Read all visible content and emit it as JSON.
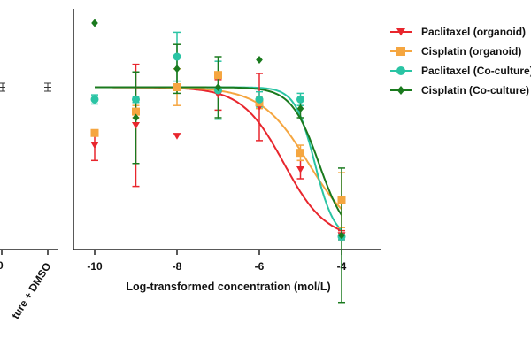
{
  "chart_data": {
    "type": "line",
    "title": "",
    "xlabel": "Log-transformed concentration (mol/L)",
    "ylabel": "",
    "xlim": [
      -10.5,
      -3.1
    ],
    "ylim": [
      0,
      1.2
    ],
    "x_ticks": [
      -10,
      -8,
      -6,
      -4
    ],
    "x_tick_labels": [
      "-10",
      "-8",
      "-6",
      "-4"
    ],
    "left_panel": {
      "labels": [
        "0",
        "ture + DMSO"
      ],
      "control_value": 1.0,
      "control_error": 0.015
    },
    "series": [
      {
        "name": "Paclitaxel (organoid)",
        "color": "#e8262d",
        "marker": "triangle-down",
        "points": [
          {
            "x": -10,
            "y": 0.62,
            "err": 0.1
          },
          {
            "x": -9,
            "y": 0.75,
            "err": 0.4
          },
          {
            "x": -8,
            "y": 0.68,
            "err": 0
          },
          {
            "x": -7,
            "y": 0.95,
            "err": 0.1
          },
          {
            "x": -6,
            "y": 0.87,
            "err": 0.22
          },
          {
            "x": -5,
            "y": 0.46,
            "err": 0.06
          },
          {
            "x": -4,
            "y": 0.03,
            "err": 0.03
          }
        ],
        "fit": {
          "top": 1.0,
          "bottom": 0.0,
          "logIC50": -5.4,
          "hill": 0.85
        }
      },
      {
        "name": "Cisplatin (organoid)",
        "color": "#f5a640",
        "marker": "square",
        "points": [
          {
            "x": -10,
            "y": 0.7,
            "err": 0
          },
          {
            "x": -9,
            "y": 0.84,
            "err": 0.04
          },
          {
            "x": -8,
            "y": 1.0,
            "err": 0.12
          },
          {
            "x": -7,
            "y": 1.08,
            "err": 0
          },
          {
            "x": -6,
            "y": 0.9,
            "err": 0.04
          },
          {
            "x": -5,
            "y": 0.57,
            "err": 0.05
          },
          {
            "x": -4,
            "y": 0.26,
            "err": 0.18
          }
        ],
        "fit": {
          "top": 1.0,
          "bottom": 0.0,
          "logIC50": -4.8,
          "hill": 0.75
        }
      },
      {
        "name": "Paclitaxel (Co-culture)",
        "color": "#2ac4a4",
        "marker": "circle",
        "points": [
          {
            "x": -10,
            "y": 0.92,
            "err": 0.03
          },
          {
            "x": -9,
            "y": 0.92,
            "err": 0.02
          },
          {
            "x": -8,
            "y": 1.2,
            "err": 0.16
          },
          {
            "x": -7,
            "y": 0.98,
            "err": 0.19
          },
          {
            "x": -6,
            "y": 0.92,
            "err": 0.05
          },
          {
            "x": -5,
            "y": 0.92,
            "err": 0.04
          },
          {
            "x": -4,
            "y": 0.02,
            "err": 0.02
          }
        ],
        "fit": {
          "top": 1.0,
          "bottom": 0.0,
          "logIC50": -4.65,
          "hill": 1.8
        }
      },
      {
        "name": "Cisplatin (Co-culture)",
        "color": "#1a7a1e",
        "marker": "diamond",
        "points": [
          {
            "x": -10,
            "y": 1.42,
            "err": 0
          },
          {
            "x": -9,
            "y": 0.8,
            "err": 0.3
          },
          {
            "x": -8,
            "y": 1.12,
            "err": 0.16
          },
          {
            "x": -7,
            "y": 1.0,
            "err": 0.2
          },
          {
            "x": -6,
            "y": 1.18,
            "err": 0
          },
          {
            "x": -5,
            "y": 0.86,
            "err": 0.06
          },
          {
            "x": -4,
            "y": 0.03,
            "err": 0.44
          }
        ],
        "fit": {
          "top": 1.0,
          "bottom": 0.0,
          "logIC50": -4.55,
          "hill": 1.3
        }
      }
    ]
  }
}
